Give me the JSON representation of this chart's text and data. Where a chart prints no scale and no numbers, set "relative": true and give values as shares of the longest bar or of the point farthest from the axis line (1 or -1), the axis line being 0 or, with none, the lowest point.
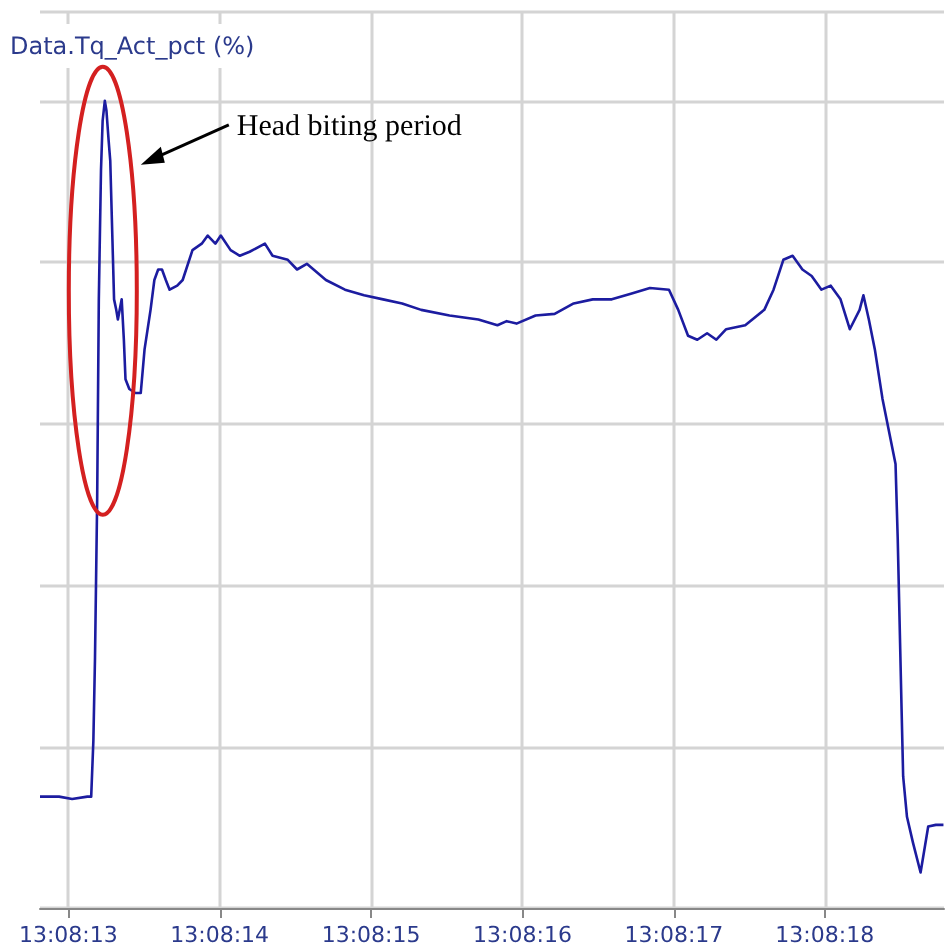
{
  "chart_data": {
    "type": "line",
    "title": "Data.Tq_Act_pct (%)",
    "relative": true,
    "grid": true,
    "marker": "none",
    "line_style": "solid",
    "xlim": [
      13.136892,
      13.138552
    ],
    "xticks": [
      {
        "value": 13.136944,
        "label": "13:08:13"
      },
      {
        "value": 13.137222,
        "label": "13:08:14"
      },
      {
        "value": 13.1375,
        "label": "13:08:15"
      },
      {
        "value": 13.137778,
        "label": "13:08:16"
      },
      {
        "value": 13.138056,
        "label": "13:08:17"
      },
      {
        "value": 13.138333,
        "label": "13:08:18"
      }
    ],
    "annotations": [
      "Head biting period"
    ],
    "series": [
      {
        "color": "#1c1ca0",
        "x": [
          13.136892,
          13.136927,
          13.136951,
          13.136979,
          13.136986,
          13.13699,
          13.136993,
          13.136997,
          13.137,
          13.137004,
          13.137007,
          13.137011,
          13.137014,
          13.137018,
          13.137021,
          13.137025,
          13.137028,
          13.137032,
          13.137035,
          13.137042,
          13.137046,
          13.137049,
          13.137056,
          13.137067,
          13.137077,
          13.137084,
          13.137095,
          13.137102,
          13.137109,
          13.137116,
          13.137123,
          13.13713,
          13.137144,
          13.137154,
          13.137172,
          13.137189,
          13.1372,
          13.137214,
          13.137224,
          13.137242,
          13.137259,
          13.137277,
          13.137305,
          13.137319,
          13.137347,
          13.137364,
          13.137382,
          13.137417,
          13.137452,
          13.137487,
          13.137522,
          13.137557,
          13.137592,
          13.137644,
          13.137697,
          13.137732,
          13.137749,
          13.137767,
          13.137802,
          13.137837,
          13.137872,
          13.137907,
          13.137942,
          13.137977,
          13.138012,
          13.138047,
          13.138064,
          13.138082,
          13.138099,
          13.138117,
          13.138134,
          13.138152,
          13.138187,
          13.138222,
          13.138239,
          13.138257,
          13.138274,
          13.138292,
          13.138309,
          13.138327,
          13.138344,
          13.138362,
          13.138379,
          13.138397,
          13.138404,
          13.138414,
          13.138425,
          13.138439,
          13.138463,
          13.138467,
          13.138474,
          13.138477,
          13.138484,
          13.138495,
          13.138509,
          13.138523,
          13.138537,
          13.138551
        ],
        "values": [
          0.138,
          0.138,
          0.135,
          0.138,
          0.138,
          0.207,
          0.31,
          0.507,
          0.754,
          0.914,
          0.975,
          1,
          0.988,
          0.951,
          0.926,
          0.828,
          0.754,
          0.741,
          0.729,
          0.754,
          0.704,
          0.655,
          0.643,
          0.638,
          0.638,
          0.692,
          0.741,
          0.778,
          0.791,
          0.791,
          0.778,
          0.766,
          0.771,
          0.778,
          0.815,
          0.823,
          0.833,
          0.823,
          0.833,
          0.815,
          0.808,
          0.813,
          0.823,
          0.808,
          0.803,
          0.791,
          0.798,
          0.778,
          0.766,
          0.759,
          0.754,
          0.749,
          0.741,
          0.734,
          0.729,
          0.722,
          0.727,
          0.724,
          0.734,
          0.736,
          0.749,
          0.754,
          0.754,
          0.761,
          0.768,
          0.766,
          0.741,
          0.709,
          0.704,
          0.712,
          0.704,
          0.717,
          0.722,
          0.741,
          0.766,
          0.803,
          0.808,
          0.791,
          0.783,
          0.766,
          0.771,
          0.754,
          0.717,
          0.741,
          0.759,
          0.729,
          0.692,
          0.631,
          0.55,
          0.458,
          0.249,
          0.163,
          0.113,
          0.081,
          0.044,
          0.101,
          0.103,
          0.103
        ]
      }
    ]
  }
}
